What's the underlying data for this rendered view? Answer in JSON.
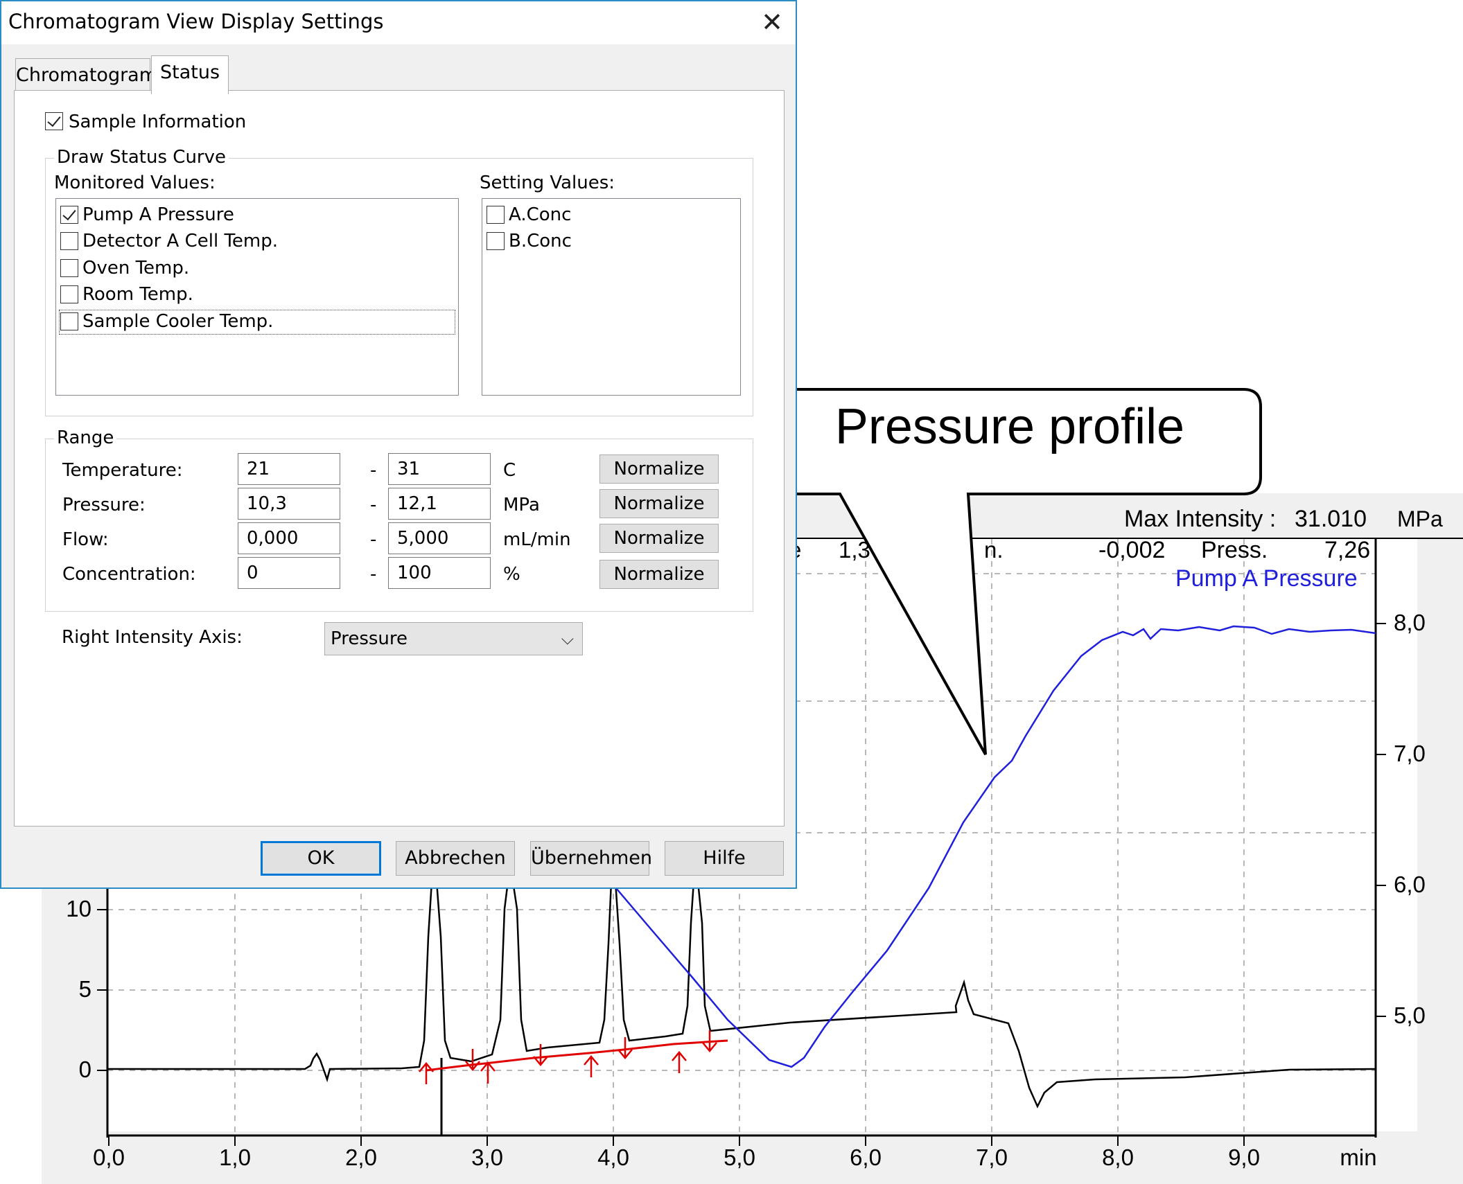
{
  "chromatogram": {
    "header": {
      "max_intensity_label": "Max Intensity :",
      "max_intensity_value": "31.010",
      "right_unit": "MPa",
      "partial_label_1": "e",
      "partial_value_1": "1,3",
      "partial_label_2": "n.",
      "value_3": "-0,002",
      "press_label": "Press.",
      "press_value": "7,26",
      "series_label": "Pump A Pressure"
    },
    "x_tick_labels": [
      "0,0",
      "1,0",
      "2,0",
      "3,0",
      "4,0",
      "5,0",
      "6,0",
      "7,0",
      "8,0",
      "9,0",
      "min"
    ],
    "left_tick_labels": [
      "10",
      "5",
      "0"
    ],
    "right_tick_labels": [
      "8,0",
      "7,0",
      "6,0",
      "5,0"
    ],
    "colors": {
      "detector": "#000000",
      "pressure": "#1f1fdc",
      "baseline": "#e00000",
      "callout_text": "#000000"
    }
  },
  "callout": {
    "text": "Pressure profile"
  },
  "dialog": {
    "title": "Chromatogram View Display Settings",
    "close_icon": "close-icon",
    "tabs": [
      {
        "label": "Chromatogram",
        "active": false
      },
      {
        "label": "Status",
        "active": true
      }
    ],
    "sample_information": {
      "label": "Sample Information",
      "checked": true
    },
    "draw_status_curve": {
      "title": "Draw Status Curve",
      "monitored_label": "Monitored Values:",
      "monitored": [
        {
          "label": "Pump A Pressure",
          "checked": true
        },
        {
          "label": "Detector A Cell Temp.",
          "checked": false
        },
        {
          "label": "Oven Temp.",
          "checked": false
        },
        {
          "label": "Room Temp.",
          "checked": false
        },
        {
          "label": "Sample Cooler Temp.",
          "checked": false
        }
      ],
      "setting_label": "Setting Values:",
      "setting": [
        {
          "label": "A.Conc",
          "checked": false
        },
        {
          "label": "B.Conc",
          "checked": false
        }
      ]
    },
    "range": {
      "title": "Range",
      "rows": [
        {
          "label": "Temperature:",
          "from": "21",
          "to": "31",
          "unit": "C",
          "button": "Normalize"
        },
        {
          "label": "Pressure:",
          "from": "10,3",
          "to": "12,1",
          "unit": "MPa",
          "button": "Normalize"
        },
        {
          "label": "Flow:",
          "from": "0,000",
          "to": "5,000",
          "unit": "mL/min",
          "button": "Normalize"
        },
        {
          "label": "Concentration:",
          "from": "0",
          "to": "100",
          "unit": "%",
          "button": "Normalize"
        }
      ],
      "separator": "-"
    },
    "right_axis": {
      "label": "Right Intensity Axis:",
      "value": "Pressure",
      "chevron_icon": "chevron-down-icon"
    },
    "buttons": {
      "ok": "OK",
      "cancel": "Abbrechen",
      "apply": "Übernehmen",
      "help": "Hilfe"
    }
  }
}
